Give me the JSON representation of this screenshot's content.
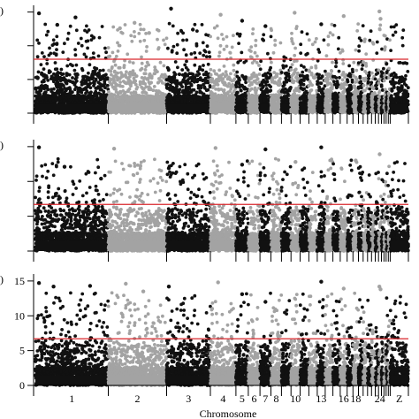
{
  "chart_data": {
    "type": "scatter",
    "xlabel": "Chromosome",
    "chromosome_labels": [
      "1",
      "2",
      "3",
      "4",
      "5",
      "6",
      "7",
      "8",
      "10",
      "13",
      "16",
      "18",
      "24",
      "Z"
    ],
    "colors": {
      "odd_chromosome": "#111111",
      "even_chromosome": "#a3a3a3",
      "threshold": "#d9262b"
    },
    "panels": [
      {
        "panel_label": ")",
        "ylabel": "",
        "y_ticks": [],
        "ylim": [
          0,
          16
        ],
        "threshold": 8,
        "top_points": [
          {
            "chr": 1,
            "pos": 0.05,
            "y": 14.8
          },
          {
            "chr": 1,
            "pos": 0.3,
            "y": 13.1
          },
          {
            "chr": 1,
            "pos": 0.55,
            "y": 14.2
          },
          {
            "chr": 1,
            "pos": 0.8,
            "y": 11.2
          },
          {
            "chr": 2,
            "pos": 0.2,
            "y": 12.6
          },
          {
            "chr": 2,
            "pos": 0.45,
            "y": 13.4
          },
          {
            "chr": 2,
            "pos": 0.7,
            "y": 11.9
          },
          {
            "chr": 3,
            "pos": 0.1,
            "y": 15.5
          },
          {
            "chr": 3,
            "pos": 0.6,
            "y": 12.4
          },
          {
            "chr": 4,
            "pos": 0.4,
            "y": 14.6
          },
          {
            "chr": 5,
            "pos": 0.5,
            "y": 13.7
          },
          {
            "chr": 7,
            "pos": 0.5,
            "y": 12.9
          },
          {
            "chr": 10,
            "pos": 0.4,
            "y": 14.9
          },
          {
            "chr": 13,
            "pos": 0.5,
            "y": 13.2
          },
          {
            "chr": 16,
            "pos": 0.5,
            "y": 14.4
          },
          {
            "chr": 24,
            "pos": 0.3,
            "y": 15.1
          },
          {
            "chr": 24,
            "pos": 0.7,
            "y": 14.0
          }
        ]
      },
      {
        "panel_label": ")",
        "ylabel": "",
        "y_ticks": [],
        "ylim": [
          0,
          16
        ],
        "threshold": 6.7,
        "top_points": [
          {
            "chr": 1,
            "pos": 0.05,
            "y": 14.9
          },
          {
            "chr": 1,
            "pos": 0.4,
            "y": 12.1
          },
          {
            "chr": 1,
            "pos": 0.9,
            "y": 10.4
          },
          {
            "chr": 2,
            "pos": 0.1,
            "y": 14.7
          },
          {
            "chr": 2,
            "pos": 0.55,
            "y": 12.2
          },
          {
            "chr": 3,
            "pos": 0.05,
            "y": 11.9
          },
          {
            "chr": 4,
            "pos": 0.2,
            "y": 14.8
          },
          {
            "chr": 5,
            "pos": 0.5,
            "y": 12.4
          },
          {
            "chr": 7,
            "pos": 0.5,
            "y": 14.6
          },
          {
            "chr": 10,
            "pos": 0.5,
            "y": 12.8
          },
          {
            "chr": 13,
            "pos": 0.5,
            "y": 14.9
          },
          {
            "chr": 18,
            "pos": 0.5,
            "y": 13.0
          },
          {
            "chr": 24,
            "pos": 0.4,
            "y": 13.9
          }
        ]
      },
      {
        "panel_label": ")",
        "ylabel": "",
        "y_ticks": [
          "0",
          "5",
          "10",
          "15"
        ],
        "ylim": [
          0,
          16
        ],
        "threshold": 6.7,
        "top_points": [
          {
            "chr": 1,
            "pos": 0.05,
            "y": 14.7
          },
          {
            "chr": 1,
            "pos": 0.25,
            "y": 14.2
          },
          {
            "chr": 1,
            "pos": 0.75,
            "y": 14.3
          },
          {
            "chr": 2,
            "pos": 0.3,
            "y": 14.6
          },
          {
            "chr": 2,
            "pos": 0.6,
            "y": 13.5
          },
          {
            "chr": 3,
            "pos": 0.05,
            "y": 14.2
          },
          {
            "chr": 4,
            "pos": 0.3,
            "y": 14.8
          },
          {
            "chr": 5,
            "pos": 0.5,
            "y": 13.1
          },
          {
            "chr": 7,
            "pos": 0.5,
            "y": 12.0
          },
          {
            "chr": 13,
            "pos": 0.5,
            "y": 14.9
          },
          {
            "chr": 16,
            "pos": 0.5,
            "y": 13.9
          },
          {
            "chr": 24,
            "pos": 0.3,
            "y": 14.2
          },
          {
            "chr": 24,
            "pos": 0.7,
            "y": 13.8
          }
        ]
      }
    ]
  }
}
